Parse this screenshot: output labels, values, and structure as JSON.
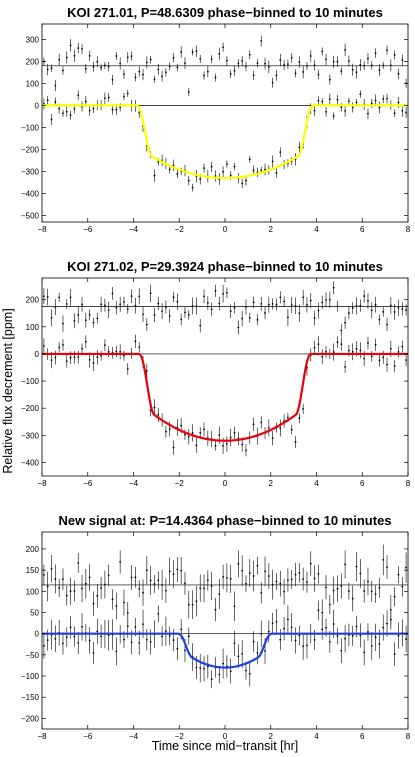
{
  "figure": {
    "xlabel": "Time since mid−transit [hr]",
    "ylabel": "Relative flux decrement [ppm]"
  },
  "chart_data": [
    {
      "type": "scatter",
      "title": "KOI 271.01, P=48.6309 phase−binned to 10 minutes",
      "xlim": [
        -8,
        8
      ],
      "ylim": [
        -530,
        370
      ],
      "xticks": [
        -8,
        -6,
        -4,
        -2,
        0,
        2,
        4,
        6,
        8
      ],
      "yticks": [
        300,
        200,
        100,
        0,
        -100,
        -200,
        -300,
        -400,
        -500
      ],
      "grid": false,
      "model_color": "#ffff00",
      "offset_level": 180,
      "depth": 330,
      "t_ingress_start": 3.85,
      "t_ingress_end": 3.2,
      "series": [
        {
          "role": "offset-binned-points",
          "baseline": 180,
          "scatter_ppm": 40,
          "errorbar_ppm": 22
        },
        {
          "role": "binned-points",
          "baseline": 0,
          "scatter_ppm": 30,
          "errorbar_ppm": 22
        },
        {
          "role": "transit-model",
          "values_summary": "flat at 0 outside |t|>3.85 hr, minimum -330 ppm at t=0"
        }
      ]
    },
    {
      "type": "scatter",
      "title": "KOI 271.02, P=29.3924 phase−binned to 10 minutes",
      "xlim": [
        -8,
        8
      ],
      "ylim": [
        -450,
        280
      ],
      "xticks": [
        -8,
        -6,
        -4,
        -2,
        0,
        2,
        4,
        6,
        8
      ],
      "yticks": [
        200,
        100,
        0,
        -100,
        -200,
        -300,
        -400
      ],
      "grid": false,
      "model_color": "#e8000b",
      "offset_level": 175,
      "depth": 320,
      "t_ingress_start": 3.75,
      "t_ingress_end": 3.1,
      "series": [
        {
          "role": "offset-binned-points",
          "baseline": 175,
          "scatter_ppm": 35,
          "errorbar_ppm": 25
        },
        {
          "role": "binned-points",
          "baseline": 0,
          "scatter_ppm": 30,
          "errorbar_ppm": 25
        },
        {
          "role": "transit-model",
          "values_summary": "flat at 0 outside |t|>3.75 hr, minimum -320 ppm at t=0"
        }
      ]
    },
    {
      "type": "scatter",
      "title": "New signal at: P=14.4364 phase−binned to 10 minutes",
      "xlim": [
        -8,
        8
      ],
      "ylim": [
        -225,
        240
      ],
      "xticks": [
        -8,
        -6,
        -4,
        -2,
        0,
        2,
        4,
        6,
        8
      ],
      "yticks": [
        200,
        150,
        100,
        50,
        0,
        -50,
        -100,
        -150,
        -200
      ],
      "grid": false,
      "model_color": "#1f3fe0",
      "offset_level": 115,
      "depth": 80,
      "t_ingress_start": 2.05,
      "t_ingress_end": 1.45,
      "series": [
        {
          "role": "offset-binned-points",
          "baseline": 115,
          "scatter_ppm": 30,
          "errorbar_ppm": 28
        },
        {
          "role": "binned-points",
          "baseline": 0,
          "scatter_ppm": 25,
          "errorbar_ppm": 28
        },
        {
          "role": "transit-model",
          "values_summary": "flat at 0 outside |t|>2.05 hr, minimum -80 ppm at t=0"
        }
      ]
    }
  ]
}
